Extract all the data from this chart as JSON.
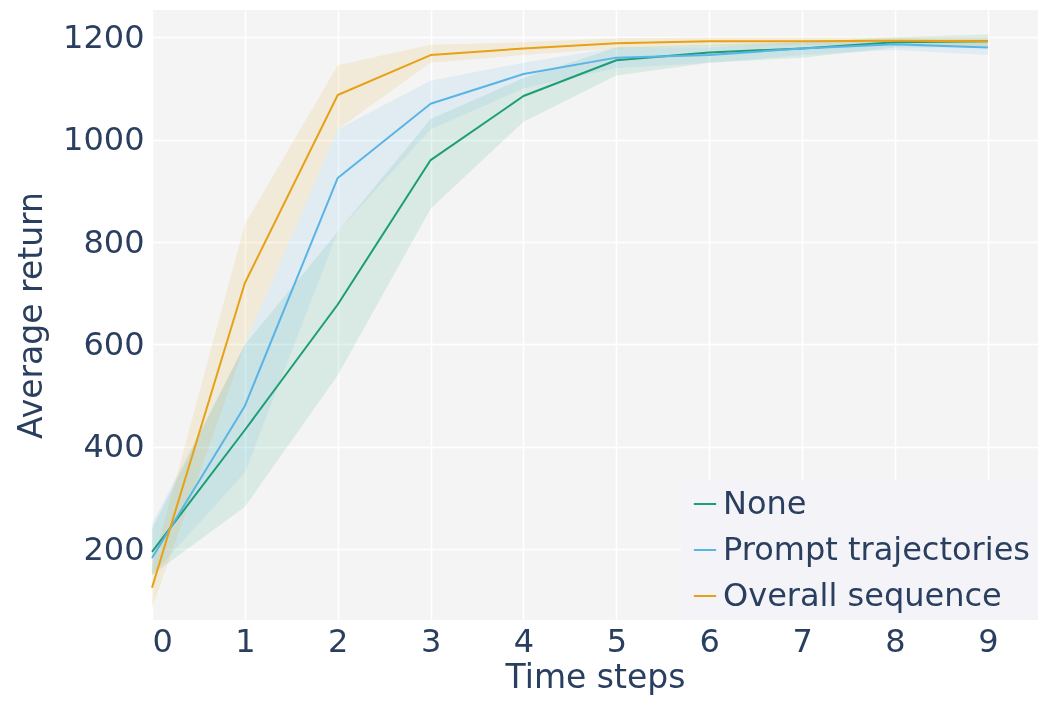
{
  "chart_data": {
    "type": "line",
    "xlabel": "Time steps",
    "ylabel": "Average return",
    "x": [
      0,
      1,
      2,
      3,
      4,
      5,
      6,
      7,
      8,
      9
    ],
    "series": [
      {
        "name": "None",
        "color": "#1b9e77",
        "values": [
          195,
          433,
          678,
          960,
          1085,
          1155,
          1170,
          1178,
          1190,
          1192
        ],
        "lower": [
          150,
          283,
          540,
          865,
          1035,
          1125,
          1150,
          1160,
          1180,
          1180
        ],
        "upper": [
          240,
          600,
          820,
          1040,
          1120,
          1180,
          1185,
          1190,
          1200,
          1205
        ]
      },
      {
        "name": "Prompt trajectories",
        "color": "#5ab4e5",
        "values": [
          183,
          480,
          925,
          1070,
          1128,
          1160,
          1165,
          1178,
          1186,
          1180
        ],
        "lower": [
          150,
          350,
          820,
          1020,
          1100,
          1140,
          1150,
          1165,
          1175,
          1165
        ],
        "upper": [
          250,
          600,
          1020,
          1115,
          1150,
          1180,
          1180,
          1190,
          1195,
          1195
        ]
      },
      {
        "name": "Overall sequence",
        "color": "#e6a117",
        "values": [
          125,
          720,
          1087,
          1165,
          1178,
          1188,
          1192,
          1192,
          1193,
          1192
        ],
        "lower": [
          85,
          600,
          1020,
          1150,
          1165,
          1178,
          1183,
          1185,
          1185,
          1182
        ],
        "upper": [
          165,
          835,
          1145,
          1185,
          1190,
          1198,
          1200,
          1200,
          1200,
          1200
        ]
      }
    ],
    "xlim": [
      0,
      9.54
    ],
    "ylim": [
      62,
      1253
    ],
    "xticks": [
      0,
      1,
      2,
      3,
      4,
      5,
      6,
      7,
      8,
      9
    ],
    "yticks": [
      200,
      400,
      600,
      800,
      1000,
      1200
    ],
    "grid": true,
    "legend": "bottom right"
  }
}
